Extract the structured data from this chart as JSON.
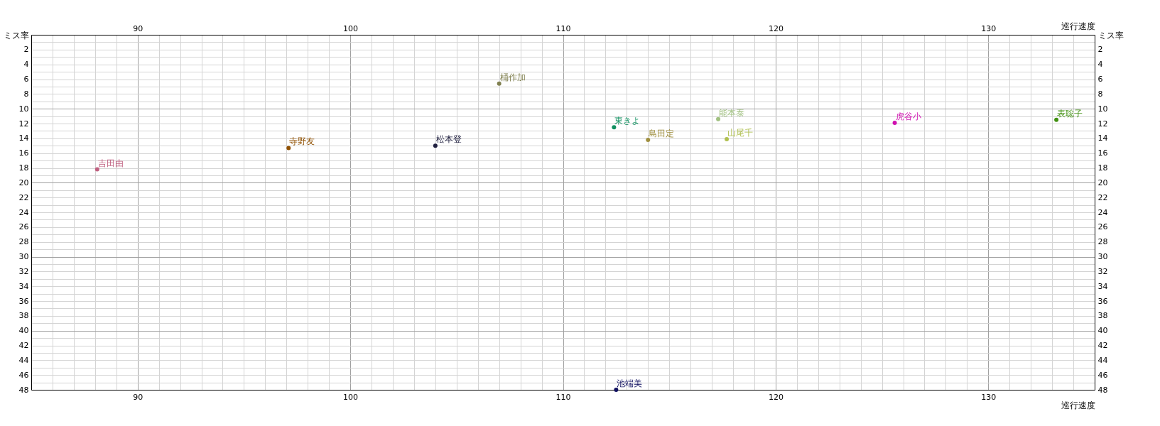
{
  "chart_data": {
    "type": "scatter",
    "xlabel": "巡行速度",
    "x2label": "巡行速度",
    "ylabel": "ミス率",
    "y2label": "ミス率",
    "xlim": [
      85,
      135
    ],
    "x2lim": [
      85,
      135
    ],
    "xticks": [
      {
        "value": 86,
        "label": null
      },
      {
        "value": 87,
        "label": null
      },
      {
        "value": 88,
        "label": null
      },
      {
        "value": 89,
        "label": null
      },
      90,
      {
        "value": 91,
        "label": null
      },
      {
        "value": 92,
        "label": null
      },
      {
        "value": 93,
        "label": null
      },
      {
        "value": 94,
        "label": null
      },
      {
        "value": 95,
        "label": null
      },
      {
        "value": 96,
        "label": null
      },
      {
        "value": 97,
        "label": null
      },
      {
        "value": 98,
        "label": null
      },
      {
        "value": 99,
        "label": null
      },
      100,
      {
        "value": 101,
        "label": null
      },
      {
        "value": 102,
        "label": null
      },
      {
        "value": 103,
        "label": null
      },
      {
        "value": 104,
        "label": null
      },
      {
        "value": 105,
        "label": null
      },
      {
        "value": 106,
        "label": null
      },
      {
        "value": 107,
        "label": null
      },
      {
        "value": 108,
        "label": null
      },
      {
        "value": 109,
        "label": null
      },
      110,
      {
        "value": 111,
        "label": null
      },
      {
        "value": 112,
        "label": null
      },
      {
        "value": 113,
        "label": null
      },
      {
        "value": 114,
        "label": null
      },
      {
        "value": 115,
        "label": null
      },
      {
        "value": 116,
        "label": null
      },
      {
        "value": 117,
        "label": null
      },
      {
        "value": 118,
        "label": null
      },
      {
        "value": 119,
        "label": null
      },
      120,
      {
        "value": 121,
        "label": null
      },
      {
        "value": 122,
        "label": null
      },
      {
        "value": 123,
        "label": null
      },
      {
        "value": 124,
        "label": null
      },
      {
        "value": 125,
        "label": null
      },
      {
        "value": 126,
        "label": null
      },
      {
        "value": 127,
        "label": null
      },
      {
        "value": 128,
        "label": null
      },
      {
        "value": 129,
        "label": null
      },
      130,
      {
        "value": 131,
        "label": null
      },
      {
        "value": 132,
        "label": null
      },
      {
        "value": 133,
        "label": null
      },
      {
        "value": 134,
        "label": null
      }
    ],
    "x2ticks": [
      90,
      100,
      110,
      120,
      130
    ],
    "ylim": [
      48,
      0
    ],
    "y2lim": [
      48,
      0
    ],
    "yticks": [
      {
        "value": 1,
        "label": null
      },
      2,
      {
        "value": 3,
        "label": null
      },
      4,
      {
        "value": 5,
        "label": null
      },
      6,
      {
        "value": 7,
        "label": null
      },
      8,
      {
        "value": 9,
        "label": null
      },
      10,
      {
        "value": 11,
        "label": null
      },
      12,
      {
        "value": 13,
        "label": null
      },
      14,
      {
        "value": 15,
        "label": null
      },
      16,
      {
        "value": 17,
        "label": null
      },
      18,
      {
        "value": 19,
        "label": null
      },
      20,
      {
        "value": 21,
        "label": null
      },
      22,
      {
        "value": 23,
        "label": null
      },
      24,
      {
        "value": 25,
        "label": null
      },
      26,
      {
        "value": 27,
        "label": null
      },
      28,
      {
        "value": 29,
        "label": null
      },
      30,
      {
        "value": 31,
        "label": null
      },
      32,
      {
        "value": 33,
        "label": null
      },
      34,
      {
        "value": 35,
        "label": null
      },
      36,
      {
        "value": 37,
        "label": null
      },
      38,
      {
        "value": 39,
        "label": null
      },
      40,
      {
        "value": 41,
        "label": null
      },
      42,
      {
        "value": 43,
        "label": null
      },
      44,
      {
        "value": 45,
        "label": null
      },
      46,
      {
        "value": 47,
        "label": null
      },
      48
    ],
    "y2ticks": [
      2,
      4,
      6,
      8,
      10,
      12,
      14,
      16,
      18,
      20,
      22,
      24,
      26,
      28,
      30,
      32,
      34,
      36,
      38,
      40,
      42,
      44,
      46,
      48
    ],
    "grid": true,
    "marker": "circle",
    "legend": false,
    "series": [
      {
        "name": "吉田由",
        "color": "#c06080",
        "x": [
          88.1
        ],
        "values": [
          18.2
        ]
      },
      {
        "name": "寺野友",
        "color": "#905000",
        "x": [
          97.1
        ],
        "values": [
          15.3
        ]
      },
      {
        "name": "松本登",
        "color": "#202040",
        "x": [
          104.0
        ],
        "values": [
          15.0
        ]
      },
      {
        "name": "桶作加",
        "color": "#808050",
        "x": [
          107.0
        ],
        "values": [
          6.6
        ]
      },
      {
        "name": "東きよ",
        "color": "#109060",
        "x": [
          112.4
        ],
        "values": [
          12.5
        ]
      },
      {
        "name": "池端美",
        "color": "#101060",
        "x": [
          112.5
        ],
        "values": [
          48
        ]
      },
      {
        "name": "島田定",
        "color": "#a09040",
        "x": [
          114.0
        ],
        "values": [
          14.2
        ]
      },
      {
        "name": "能本泰",
        "color": "#a0c080",
        "x": [
          117.3
        ],
        "values": [
          11.4
        ]
      },
      {
        "name": "山尾千",
        "color": "#b0c050",
        "x": [
          117.7
        ],
        "values": [
          14.1
        ]
      },
      {
        "name": "虎谷小",
        "color": "#d010b0",
        "x": [
          125.6
        ],
        "values": [
          11.9
        ]
      },
      {
        "name": "表聡子",
        "color": "#409010",
        "x": [
          133.2
        ],
        "values": [
          11.5
        ]
      }
    ]
  }
}
